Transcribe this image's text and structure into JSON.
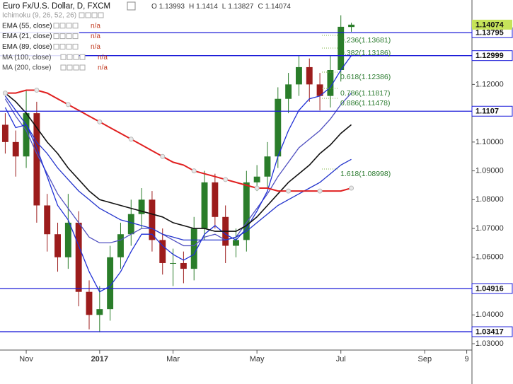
{
  "chart_data": {
    "type": "candlestick",
    "title": "Euro Fx/U.S. Dollar, D, FXCM",
    "ohlc_labels": [
      "O",
      "H",
      "L",
      "C"
    ],
    "indicator": "Ichimoku (9, 26, 52, 26)",
    "na_label": "n/a",
    "categories": [
      null,
      null,
      "Nov",
      null,
      null,
      null,
      null,
      null,
      null,
      "2017",
      null,
      null,
      null,
      null,
      null,
      null,
      "Mar",
      null,
      null,
      null,
      null,
      null,
      null,
      null,
      "May",
      null,
      null,
      null,
      null,
      null,
      null,
      null,
      "Jul",
      null,
      null,
      null,
      null,
      null,
      null,
      null,
      "Sep",
      null,
      null,
      null,
      "9"
    ],
    "candles": [
      [
        1.106,
        1.11,
        1.096,
        1.1
      ],
      [
        1.1,
        1.104,
        1.088,
        1.095
      ],
      [
        1.095,
        1.118,
        1.091,
        1.11
      ],
      [
        1.11,
        1.114,
        1.072,
        1.078
      ],
      [
        1.078,
        1.082,
        1.062,
        1.068
      ],
      [
        1.068,
        1.072,
        1.055,
        1.06
      ],
      [
        1.06,
        1.082,
        1.056,
        1.072
      ],
      [
        1.072,
        1.076,
        1.043,
        1.048
      ],
      [
        1.048,
        1.052,
        1.035,
        1.04
      ],
      [
        1.04,
        1.05,
        1.034,
        1.042
      ],
      [
        1.042,
        1.064,
        1.038,
        1.06
      ],
      [
        1.06,
        1.072,
        1.056,
        1.068
      ],
      [
        1.068,
        1.08,
        1.064,
        1.075
      ],
      [
        1.075,
        1.084,
        1.07,
        1.08
      ],
      [
        1.08,
        1.083,
        1.062,
        1.066
      ],
      [
        1.066,
        1.07,
        1.054,
        1.058
      ],
      [
        1.058,
        1.063,
        1.05,
        1.058
      ],
      [
        1.058,
        1.062,
        1.051,
        1.056
      ],
      [
        1.056,
        1.074,
        1.052,
        1.07
      ],
      [
        1.07,
        1.09,
        1.066,
        1.086
      ],
      [
        1.086,
        1.089,
        1.07,
        1.074
      ],
      [
        1.074,
        1.078,
        1.058,
        1.064
      ],
      [
        1.064,
        1.07,
        1.06,
        1.066
      ],
      [
        1.066,
        1.09,
        1.062,
        1.086
      ],
      [
        1.086,
        1.092,
        1.083,
        1.088
      ],
      [
        1.088,
        1.1,
        1.084,
        1.095
      ],
      [
        1.095,
        1.119,
        1.091,
        1.115
      ],
      [
        1.115,
        1.124,
        1.11,
        1.12
      ],
      [
        1.12,
        1.13,
        1.116,
        1.126
      ],
      [
        1.126,
        1.129,
        1.114,
        1.12
      ],
      [
        1.12,
        1.124,
        1.111,
        1.116
      ],
      [
        1.116,
        1.13,
        1.112,
        1.125
      ],
      [
        1.125,
        1.144,
        1.121,
        1.14
      ],
      [
        1.13993,
        1.1414,
        1.13827,
        1.14074
      ],
      null,
      null,
      null,
      null,
      null,
      null,
      null,
      null,
      null,
      null,
      null
    ],
    "up_color": "#2a7d2a",
    "down_color": "#9c1c1c",
    "series": [
      {
        "name": "EMA (55, close)",
        "color": "#5050c0",
        "width": 1.3,
        "values": [
          1.115,
          1.109,
          1.104,
          1.096,
          1.089,
          1.082,
          1.077,
          1.072,
          1.067,
          1.065,
          1.065,
          1.066,
          1.068,
          1.07,
          1.07,
          1.068,
          1.066,
          1.064,
          1.064,
          1.067,
          1.068,
          1.066,
          1.067,
          1.072,
          1.077,
          1.082,
          1.088,
          1.093,
          1.098,
          1.101,
          1.104,
          1.108,
          1.113,
          1.117,
          null,
          null,
          null,
          null,
          null,
          null,
          null,
          null,
          null,
          null,
          null
        ]
      },
      {
        "name": "EMA (21, close)",
        "color": "#1f2fd6",
        "width": 1.3,
        "values": [
          1.112,
          1.105,
          1.106,
          1.098,
          1.088,
          1.078,
          1.073,
          1.064,
          1.055,
          1.048,
          1.05,
          1.055,
          1.062,
          1.068,
          1.068,
          1.064,
          1.061,
          1.059,
          1.061,
          1.068,
          1.071,
          1.068,
          1.066,
          1.07,
          1.076,
          1.083,
          1.095,
          1.104,
          1.111,
          1.115,
          1.116,
          1.119,
          1.125,
          1.13,
          null,
          null,
          null,
          null,
          null,
          null,
          null,
          null,
          null,
          null,
          null
        ]
      },
      {
        "name": "EMA (89, close)",
        "color": "#2233cc",
        "width": 1.3,
        "values": [
          1.116,
          1.111,
          1.106,
          1.1,
          1.096,
          1.091,
          1.087,
          1.083,
          1.08,
          1.077,
          1.075,
          1.073,
          1.072,
          1.071,
          1.07,
          1.068,
          1.067,
          1.066,
          1.066,
          1.066,
          1.066,
          1.066,
          1.067,
          1.069,
          1.072,
          1.075,
          1.078,
          1.08,
          1.082,
          1.084,
          1.086,
          1.089,
          1.092,
          1.094,
          null,
          null,
          null,
          null,
          null,
          null,
          null,
          null,
          null,
          null,
          null
        ]
      },
      {
        "name": "MA (100, close)",
        "color": "#111111",
        "width": 1.6,
        "values": [
          1.117,
          1.114,
          1.11,
          1.105,
          1.1,
          1.096,
          1.091,
          1.087,
          1.083,
          1.08,
          1.079,
          1.078,
          1.077,
          1.076,
          1.075,
          1.074,
          1.072,
          1.071,
          1.07,
          1.07,
          1.069,
          1.069,
          1.069,
          1.071,
          1.074,
          1.078,
          1.082,
          1.086,
          1.089,
          1.092,
          1.096,
          1.099,
          1.103,
          1.106,
          null,
          null,
          null,
          null,
          null,
          null,
          null,
          null,
          null,
          null,
          null
        ]
      },
      {
        "name": "MA (200, close)",
        "color": "#e02020",
        "width": 2,
        "markers": true,
        "values": [
          1.117,
          1.117,
          1.118,
          1.118,
          1.117,
          1.115,
          1.113,
          1.111,
          1.109,
          1.107,
          1.105,
          1.103,
          1.101,
          1.099,
          1.097,
          1.095,
          1.093,
          1.092,
          1.09,
          1.089,
          1.088,
          1.087,
          1.086,
          1.085,
          1.084,
          1.084,
          1.083,
          1.083,
          1.083,
          1.083,
          1.083,
          1.083,
          1.083,
          1.084,
          null,
          null,
          null,
          null,
          null,
          null,
          null,
          null,
          null,
          null,
          null
        ]
      }
    ],
    "levels": [
      1.13795,
      1.12999,
      1.1107,
      1.04916,
      1.03417
    ],
    "level_color": "#1c1cd8",
    "last_price_color": "#c6e35a",
    "fib_labels": [
      "0.236(1.13681)",
      "0.382(1.13186)",
      "0.618(1.12386)",
      "0.786(1.11817)",
      "0.886(1.11478)",
      "1.618(1.08998)"
    ],
    "ylim": [
      1.0278,
      1.1493
    ],
    "yticks": [
      {
        "value": 1.03,
        "label": "1.03000"
      },
      {
        "value": 1.04,
        "label": "1.04000"
      },
      {
        "value": 1.06,
        "label": "1.06000"
      },
      {
        "value": 1.07,
        "label": "1.07000"
      },
      {
        "value": 1.08,
        "label": "1.08000"
      },
      {
        "value": 1.09,
        "label": "1.09000"
      },
      {
        "value": 1.1,
        "label": "1.10000"
      },
      {
        "value": 1.12,
        "label": "1.12000"
      }
    ]
  }
}
